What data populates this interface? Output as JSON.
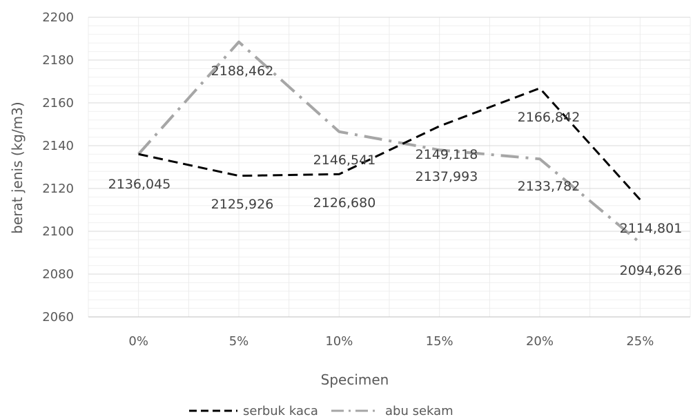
{
  "chart_data": {
    "type": "line",
    "title": "",
    "xlabel": "Specimen",
    "ylabel": "berat jenis (kg/m3)",
    "categories": [
      "0%",
      "5%",
      "10%",
      "15%",
      "20%",
      "25%"
    ],
    "ylim": [
      2060,
      2200
    ],
    "yticks": [
      2060,
      2080,
      2100,
      2120,
      2140,
      2160,
      2180,
      2200
    ],
    "grid": true,
    "legend_position": "bottom",
    "series": [
      {
        "name": "serbuk kaca",
        "values": [
          2136.045,
          2125.926,
          2126.68,
          2149.118,
          2166.842,
          2114.801
        ],
        "labels": [
          "2136,045",
          "2125,926",
          "2126,680",
          "2149,118",
          "2166,842",
          "2114,801"
        ],
        "color": "#000000",
        "dash": "dashed"
      },
      {
        "name": "abu sekam",
        "values": [
          2136.045,
          2188.462,
          2146.541,
          2137.993,
          2133.782,
          2094.626
        ],
        "labels": [
          "2136,045",
          "2188,462",
          "2146,541",
          "2137,993",
          "2133,782",
          "2094,626"
        ],
        "color": "#a6a6a6",
        "dash": "dash-dot"
      }
    ]
  }
}
